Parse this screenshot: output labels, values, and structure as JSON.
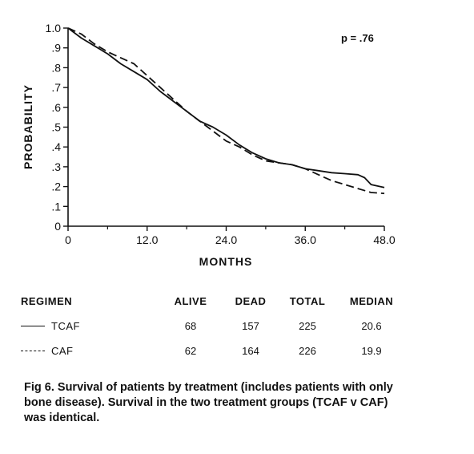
{
  "chart_data": {
    "type": "line",
    "title": "",
    "xlabel": "MONTHS",
    "ylabel": "PROBABILITY",
    "xlim": [
      0,
      48
    ],
    "ylim": [
      0,
      1.0
    ],
    "xticks": [
      0,
      12,
      24,
      36,
      48
    ],
    "xtick_labels": [
      "0",
      "12.0",
      "24.0",
      "36.0",
      "48.0"
    ],
    "yticks": [
      0,
      0.1,
      0.2,
      0.3,
      0.4,
      0.5,
      0.6,
      0.7,
      0.8,
      0.9,
      1.0
    ],
    "ytick_labels": [
      "0",
      ".1",
      ".2",
      ".3",
      ".4",
      ".5",
      ".6",
      ".7",
      ".8",
      ".9",
      "1.0"
    ],
    "annotation": "p = .76",
    "grid": false,
    "series": [
      {
        "name": "TCAF",
        "style": "solid",
        "points": [
          [
            0,
            1.0
          ],
          [
            2,
            0.95
          ],
          [
            4,
            0.91
          ],
          [
            6,
            0.87
          ],
          [
            8,
            0.82
          ],
          [
            10,
            0.78
          ],
          [
            12,
            0.74
          ],
          [
            14,
            0.68
          ],
          [
            16,
            0.63
          ],
          [
            18,
            0.58
          ],
          [
            20,
            0.53
          ],
          [
            22,
            0.5
          ],
          [
            24,
            0.46
          ],
          [
            26,
            0.41
          ],
          [
            28,
            0.37
          ],
          [
            30,
            0.34
          ],
          [
            32,
            0.32
          ],
          [
            34,
            0.31
          ],
          [
            36,
            0.29
          ],
          [
            38,
            0.28
          ],
          [
            40,
            0.27
          ],
          [
            42,
            0.265
          ],
          [
            44,
            0.26
          ],
          [
            45,
            0.245
          ],
          [
            46,
            0.21
          ],
          [
            48,
            0.195
          ]
        ]
      },
      {
        "name": "CAF",
        "style": "dashed",
        "points": [
          [
            0,
            1.0
          ],
          [
            2,
            0.97
          ],
          [
            4,
            0.92
          ],
          [
            6,
            0.88
          ],
          [
            8,
            0.85
          ],
          [
            10,
            0.82
          ],
          [
            12,
            0.76
          ],
          [
            14,
            0.7
          ],
          [
            16,
            0.64
          ],
          [
            18,
            0.58
          ],
          [
            20,
            0.53
          ],
          [
            22,
            0.48
          ],
          [
            24,
            0.43
          ],
          [
            26,
            0.4
          ],
          [
            28,
            0.36
          ],
          [
            30,
            0.33
          ],
          [
            32,
            0.32
          ],
          [
            34,
            0.31
          ],
          [
            36,
            0.29
          ],
          [
            38,
            0.26
          ],
          [
            40,
            0.23
          ],
          [
            42,
            0.21
          ],
          [
            44,
            0.19
          ],
          [
            46,
            0.17
          ],
          [
            48,
            0.165
          ]
        ]
      }
    ]
  },
  "summary_table": {
    "headers": [
      "REGIMEN",
      "ALIVE",
      "DEAD",
      "TOTAL",
      "MEDIAN"
    ],
    "rows": [
      {
        "regimen": "TCAF",
        "alive": "68",
        "dead": "157",
        "total": "225",
        "median": "20.6"
      },
      {
        "regimen": "CAF",
        "alive": "62",
        "dead": "164",
        "total": "226",
        "median": "19.9"
      }
    ]
  },
  "caption": "Fig 6. Survival of patients by treatment (includes patients with only bone disease). Survival in the two treatment groups (TCAF v CAF) was identical."
}
